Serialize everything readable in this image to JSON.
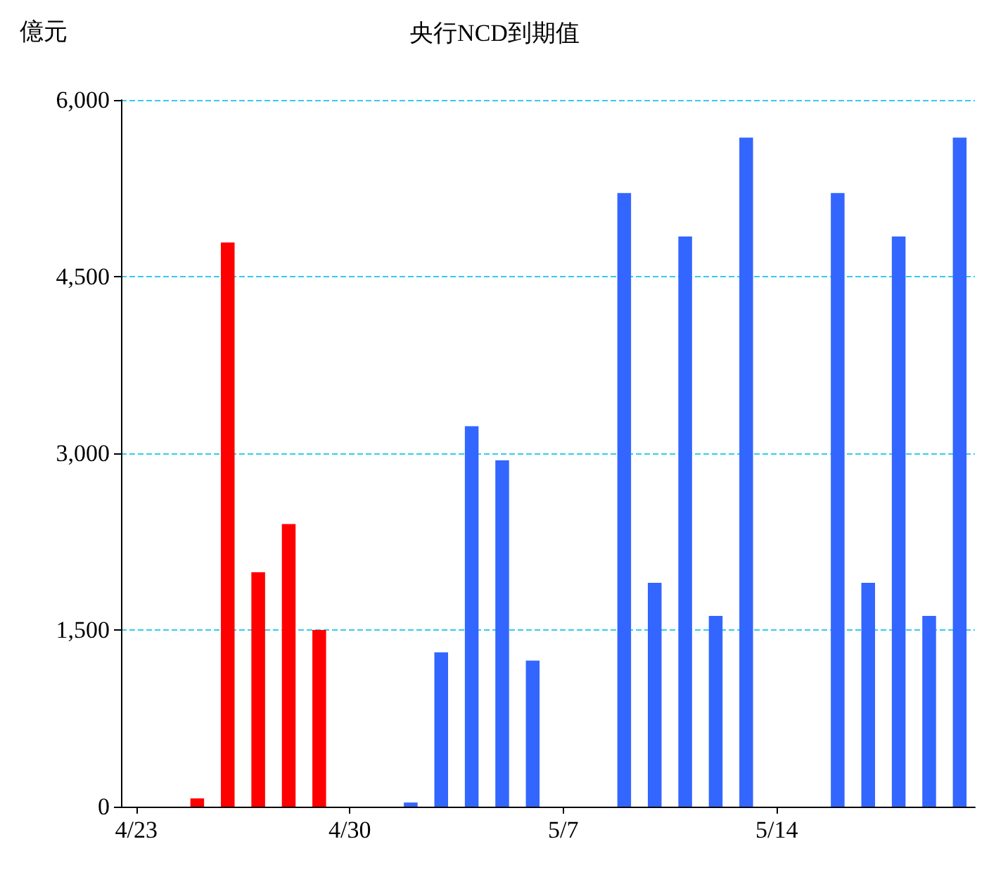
{
  "chart_data": {
    "type": "bar",
    "title": "央行NCD到期值",
    "ylabel": "億元",
    "categories": [
      "4/23",
      null,
      null,
      null,
      null,
      null,
      null,
      "4/30",
      null,
      null,
      null,
      null,
      null,
      null,
      "5/7",
      null,
      null,
      null,
      null,
      null,
      null,
      "5/14",
      null,
      null,
      null,
      null,
      null,
      null
    ],
    "values": [
      null,
      null,
      70,
      4790,
      1990,
      2400,
      1500,
      null,
      null,
      35,
      1310,
      3230,
      2940,
      1240,
      null,
      null,
      5210,
      1900,
      4840,
      1620,
      5680,
      null,
      null,
      5210,
      1900,
      4840,
      1620,
      5680
    ],
    "colors": [
      "#3366ff",
      "#3366ff",
      "#ff0000",
      "#ff0000",
      "#ff0000",
      "#ff0000",
      "#ff0000",
      "#3366ff",
      "#3366ff",
      "#3366ff",
      "#3366ff",
      "#3366ff",
      "#3366ff",
      "#3366ff",
      "#3366ff",
      "#3366ff",
      "#3366ff",
      "#3366ff",
      "#3366ff",
      "#3366ff",
      "#3366ff",
      "#3366ff",
      "#3366ff",
      "#3366ff",
      "#3366ff",
      "#3366ff",
      "#3366ff",
      "#3366ff"
    ],
    "ylim": [
      0,
      6000
    ],
    "yticks": [
      {
        "value": 0,
        "label": "0"
      },
      {
        "value": 1500,
        "label": "1,500"
      },
      {
        "value": 3000,
        "label": "3,000"
      },
      {
        "value": 4500,
        "label": "4,500"
      },
      {
        "value": 6000,
        "label": "6,000"
      }
    ],
    "grid": "y"
  }
}
